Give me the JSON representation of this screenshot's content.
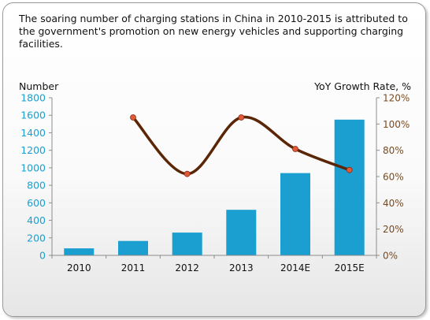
{
  "caption": "The soaring number of charging stations in China in 2010-2015 is attributed to the government's promotion on new energy vehicles and supporting charging facilities.",
  "chart_data": {
    "type": "bar",
    "categories": [
      "2010",
      "2011",
      "2012",
      "2013",
      "2014E",
      "2015E"
    ],
    "ylabel": "Number",
    "ylim": [
      0,
      1800
    ],
    "yticks": [
      0,
      200,
      400,
      600,
      800,
      1000,
      1200,
      1400,
      1600,
      1800
    ],
    "y2label": "YoY Growth Rate, %",
    "y2lim": [
      0,
      120
    ],
    "y2ticks": [
      "0%",
      "20%",
      "40%",
      "60%",
      "80%",
      "100%",
      "120%"
    ],
    "series": [
      {
        "type": "bar",
        "values": [
          80,
          165,
          260,
          520,
          940,
          1550
        ],
        "color": "#1a9fd0",
        "axis": "left"
      },
      {
        "type": "line",
        "values": [
          null,
          105,
          62,
          105,
          81,
          65
        ],
        "color": "#5a2606",
        "marker_color": "#e05a3a",
        "axis": "right"
      }
    ],
    "grid": false
  }
}
